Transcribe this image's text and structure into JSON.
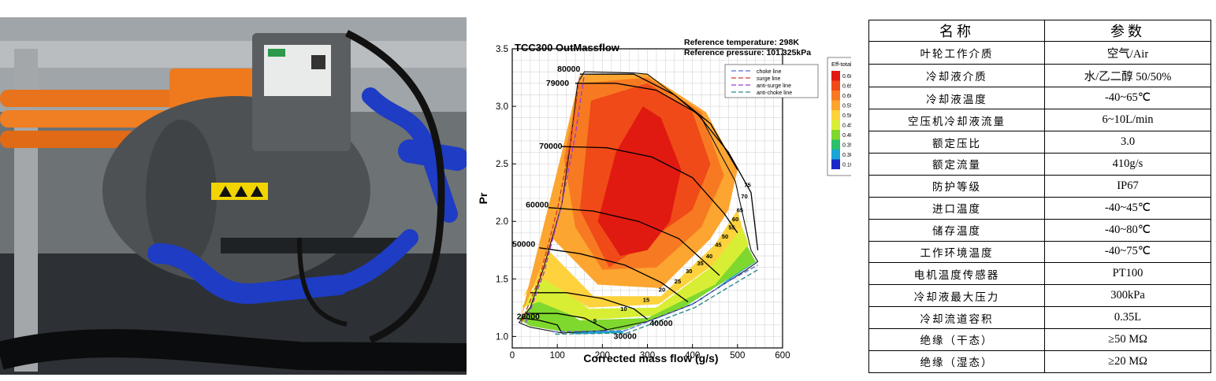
{
  "photo": {
    "caption": "",
    "label_text": "",
    "icon_names": [
      "high-voltage-warning-icon",
      "hot-surface-warning-icon",
      "electric-shock-warning-icon"
    ]
  },
  "chart_data": {
    "type": "contour",
    "title": "TCC300 OutMassflow",
    "reference": [
      "Reference temperature: 298K",
      "Reference pressure: 101.325kPa"
    ],
    "xlabel": "Corrected mass flow (g/s)",
    "ylabel": "Pr",
    "xlim": [
      0,
      600
    ],
    "ylim": [
      0.9,
      3.5
    ],
    "xticks": [
      0,
      100,
      200,
      300,
      400,
      500,
      600
    ],
    "yticks": [
      1.0,
      1.5,
      2.0,
      2.5,
      3.0,
      3.5
    ],
    "grid": true,
    "legend_position": "top-right",
    "legend": [
      {
        "label": "choke line",
        "color": "#5b6be0",
        "dash": "6 3"
      },
      {
        "label": "surge line",
        "color": "#d23a2a",
        "dash": "6 3"
      },
      {
        "label": "anti-surge line",
        "color": "#9a3fd0",
        "dash": "6 3"
      },
      {
        "label": "anti-choke line",
        "color": "#2a8a8a",
        "dash": "6 3"
      }
    ],
    "colorbar": {
      "title": "Eff-total",
      "levels": [
        "0.68",
        "0.65",
        "0.60",
        "0.55",
        "0.50",
        "0.45",
        "0.40",
        "0.35",
        "0.30",
        "0.10"
      ],
      "colors": [
        "#e01a10",
        "#f04a18",
        "#f77a22",
        "#fca530",
        "#fdd23c",
        "#d8ee34",
        "#7fd82e",
        "#2bc06a",
        "#1aa6d6",
        "#1a28c8"
      ]
    },
    "efficiency_zones": [
      {
        "color": "#1aa6d6",
        "points": [
          [
            20,
            1.18
          ],
          [
            45,
            1.1
          ],
          [
            130,
            1.04
          ],
          [
            250,
            1.05
          ],
          [
            420,
            1.32
          ],
          [
            520,
            1.62
          ],
          [
            545,
            1.66
          ],
          [
            410,
            1.3
          ],
          [
            240,
            1.03
          ],
          [
            140,
            1.02
          ]
        ]
      },
      {
        "color": "#7fd82e",
        "points": [
          [
            15,
            1.15
          ],
          [
            60,
            1.35
          ],
          [
            150,
            1.14
          ],
          [
            300,
            1.16
          ],
          [
            430,
            1.42
          ],
          [
            520,
            1.8
          ],
          [
            540,
            1.65
          ],
          [
            500,
            1.55
          ],
          [
            380,
            1.25
          ],
          [
            250,
            1.06
          ],
          [
            130,
            1.03
          ],
          [
            40,
            1.09
          ]
        ]
      },
      {
        "color": "#d8ee34",
        "points": [
          [
            20,
            1.25
          ],
          [
            70,
            1.55
          ],
          [
            170,
            1.24
          ],
          [
            320,
            1.25
          ],
          [
            440,
            1.6
          ],
          [
            510,
            1.95
          ],
          [
            525,
            1.8
          ],
          [
            450,
            1.45
          ],
          [
            310,
            1.18
          ],
          [
            160,
            1.14
          ],
          [
            60,
            1.3
          ]
        ]
      },
      {
        "color": "#fdd23c",
        "points": [
          [
            25,
            1.35
          ],
          [
            80,
            1.75
          ],
          [
            180,
            1.35
          ],
          [
            330,
            1.35
          ],
          [
            450,
            1.8
          ],
          [
            500,
            2.1
          ],
          [
            510,
            1.95
          ],
          [
            445,
            1.62
          ],
          [
            325,
            1.28
          ],
          [
            170,
            1.25
          ],
          [
            70,
            1.5
          ]
        ]
      },
      {
        "color": "#fca530",
        "points": [
          [
            20,
            1.18
          ],
          [
            110,
            2.6
          ],
          [
            150,
            3.27
          ],
          [
            200,
            3.28
          ],
          [
            300,
            3.28
          ],
          [
            430,
            2.95
          ],
          [
            500,
            2.45
          ],
          [
            480,
            2.1
          ],
          [
            440,
            1.85
          ],
          [
            330,
            1.42
          ],
          [
            190,
            1.45
          ],
          [
            90,
            1.85
          ]
        ]
      },
      {
        "color": "#f77a22",
        "points": [
          [
            115,
            2.55
          ],
          [
            150,
            3.2
          ],
          [
            300,
            3.25
          ],
          [
            420,
            2.95
          ],
          [
            470,
            2.4
          ],
          [
            420,
            1.95
          ],
          [
            320,
            1.6
          ],
          [
            200,
            1.58
          ],
          [
            140,
            1.95
          ]
        ]
      },
      {
        "color": "#f04a18",
        "points": [
          [
            150,
            2.1
          ],
          [
            175,
            3.05
          ],
          [
            300,
            3.2
          ],
          [
            400,
            2.95
          ],
          [
            440,
            2.5
          ],
          [
            400,
            2.1
          ],
          [
            310,
            1.85
          ],
          [
            215,
            1.6
          ]
        ]
      },
      {
        "color": "#e01a10",
        "points": [
          [
            190,
            2.0
          ],
          [
            230,
            2.6
          ],
          [
            290,
            3.0
          ],
          [
            330,
            2.9
          ],
          [
            375,
            2.45
          ],
          [
            350,
            2.0
          ],
          [
            300,
            1.75
          ],
          [
            240,
            1.7
          ]
        ]
      }
    ],
    "map_boundary": [
      [
        15,
        1.12
      ],
      [
        40,
        1.25
      ],
      [
        70,
        1.6
      ],
      [
        110,
        2.15
      ],
      [
        130,
        2.7
      ],
      [
        145,
        3.2
      ],
      [
        160,
        3.3
      ],
      [
        270,
        3.29
      ],
      [
        300,
        3.28
      ],
      [
        360,
        3.1
      ],
      [
        420,
        2.9
      ],
      [
        460,
        2.6
      ],
      [
        495,
        2.35
      ],
      [
        515,
        2.0
      ],
      [
        530,
        1.75
      ],
      [
        545,
        1.65
      ],
      [
        520,
        1.58
      ],
      [
        480,
        1.48
      ],
      [
        400,
        1.28
      ],
      [
        300,
        1.13
      ],
      [
        200,
        1.05
      ],
      [
        110,
        1.03
      ],
      [
        40,
        1.08
      ]
    ],
    "speed_lines": [
      {
        "label": "20000",
        "label_at": [
          10,
          1.15
        ],
        "points": [
          [
            20,
            1.16
          ],
          [
            60,
            1.14
          ],
          [
            100,
            1.1
          ],
          [
            110,
            1.03
          ]
        ]
      },
      {
        "label": "30000",
        "label_at": [
          225,
          0.98
        ],
        "points": [
          [
            30,
            1.2
          ],
          [
            100,
            1.2
          ],
          [
            160,
            1.16
          ],
          [
            190,
            1.1
          ],
          [
            210,
            1.06
          ]
        ]
      },
      {
        "label": "40000",
        "label_at": [
          305,
          1.09
        ],
        "points": [
          [
            40,
            1.38
          ],
          [
            120,
            1.38
          ],
          [
            200,
            1.33
          ],
          [
            270,
            1.24
          ],
          [
            300,
            1.15
          ]
        ]
      },
      {
        "label": "50000",
        "label_at": [
          0,
          1.78
        ],
        "points": [
          [
            60,
            1.77
          ],
          [
            150,
            1.72
          ],
          [
            250,
            1.62
          ],
          [
            330,
            1.47
          ],
          [
            390,
            1.3
          ]
        ]
      },
      {
        "label": "60000",
        "label_at": [
          30,
          2.12
        ],
        "points": [
          [
            80,
            2.12
          ],
          [
            180,
            2.09
          ],
          [
            280,
            2.0
          ],
          [
            370,
            1.85
          ],
          [
            460,
            1.53
          ]
        ]
      },
      {
        "label": "70000",
        "label_at": [
          60,
          2.63
        ],
        "points": [
          [
            110,
            2.65
          ],
          [
            210,
            2.64
          ],
          [
            310,
            2.56
          ],
          [
            400,
            2.38
          ],
          [
            470,
            2.07
          ],
          [
            500,
            1.9
          ]
        ]
      },
      {
        "label": "79000",
        "label_at": [
          75,
          3.18
        ],
        "points": [
          [
            140,
            3.2
          ],
          [
            230,
            3.2
          ],
          [
            320,
            3.14
          ],
          [
            410,
            2.94
          ],
          [
            480,
            2.6
          ],
          [
            530,
            2.25
          ],
          [
            545,
            1.75
          ]
        ]
      },
      {
        "label": "80000",
        "label_at": [
          100,
          3.3
        ],
        "points": [
          [
            150,
            3.28
          ],
          [
            270,
            3.28
          ],
          [
            360,
            3.1
          ],
          [
            440,
            2.85
          ],
          [
            500,
            2.45
          ]
        ]
      }
    ],
    "surge_lines": [
      {
        "name": "surge",
        "color": "#d23a2a",
        "points": [
          [
            20,
            1.12
          ],
          [
            60,
            1.5
          ],
          [
            100,
            2.1
          ],
          [
            130,
            2.7
          ],
          [
            150,
            3.27
          ]
        ]
      },
      {
        "name": "anti-surge",
        "color": "#9a3fd0",
        "points": [
          [
            30,
            1.12
          ],
          [
            70,
            1.55
          ],
          [
            110,
            2.15
          ],
          [
            140,
            2.75
          ],
          [
            160,
            3.28
          ]
        ]
      }
    ],
    "choke_lines": [
      {
        "name": "choke",
        "color": "#5b6be0",
        "points": [
          [
            90,
            1.04
          ],
          [
            250,
            1.05
          ],
          [
            400,
            1.28
          ],
          [
            480,
            1.48
          ],
          [
            545,
            1.62
          ]
        ]
      },
      {
        "name": "anti-choke",
        "color": "#2a8a8a",
        "points": [
          [
            95,
            1.02
          ],
          [
            255,
            1.03
          ],
          [
            405,
            1.25
          ],
          [
            485,
            1.44
          ],
          [
            545,
            1.58
          ]
        ]
      }
    ],
    "efficiency_labels": [
      {
        "text": "5",
        "at": [
          180,
          1.12
        ]
      },
      {
        "text": "10",
        "at": [
          240,
          1.22
        ]
      },
      {
        "text": "15",
        "at": [
          290,
          1.3
        ]
      },
      {
        "text": "20",
        "at": [
          325,
          1.39
        ]
      },
      {
        "text": "25",
        "at": [
          360,
          1.46
        ]
      },
      {
        "text": "30",
        "at": [
          385,
          1.55
        ]
      },
      {
        "text": "35",
        "at": [
          410,
          1.62
        ]
      },
      {
        "text": "40",
        "at": [
          430,
          1.68
        ]
      },
      {
        "text": "45",
        "at": [
          450,
          1.78
        ]
      },
      {
        "text": "50",
        "at": [
          465,
          1.85
        ]
      },
      {
        "text": "55",
        "at": [
          480,
          1.93
        ]
      },
      {
        "text": "60",
        "at": [
          488,
          2.0
        ]
      },
      {
        "text": "65",
        "at": [
          498,
          2.08
        ]
      },
      {
        "text": "70",
        "at": [
          508,
          2.2
        ]
      },
      {
        "text": "75",
        "at": [
          515,
          2.3
        ]
      }
    ]
  },
  "table": {
    "headers": [
      "名称",
      "参数"
    ],
    "rows": [
      [
        "叶轮工作介质",
        "空气/Air"
      ],
      [
        "冷却液介质",
        "水/乙二醇 50/50%"
      ],
      [
        "冷却液温度",
        "-40~65℃"
      ],
      [
        "空压机冷却液流量",
        "6~10L/min"
      ],
      [
        "额定压比",
        "3.0"
      ],
      [
        "额定流量",
        "410g/s"
      ],
      [
        "防护等级",
        "IP67"
      ],
      [
        "进口温度",
        "-40~45℃"
      ],
      [
        "储存温度",
        "-40~80℃"
      ],
      [
        "工作环境温度",
        "-40~75℃"
      ],
      [
        "电机温度传感器",
        "PT100"
      ],
      [
        "冷却液最大压力",
        "300kPa"
      ],
      [
        "冷却流道容积",
        "0.35L"
      ],
      [
        "绝缘（干态）",
        "≥50 MΩ"
      ],
      [
        "绝缘（湿态）",
        "≥20 MΩ"
      ]
    ]
  }
}
